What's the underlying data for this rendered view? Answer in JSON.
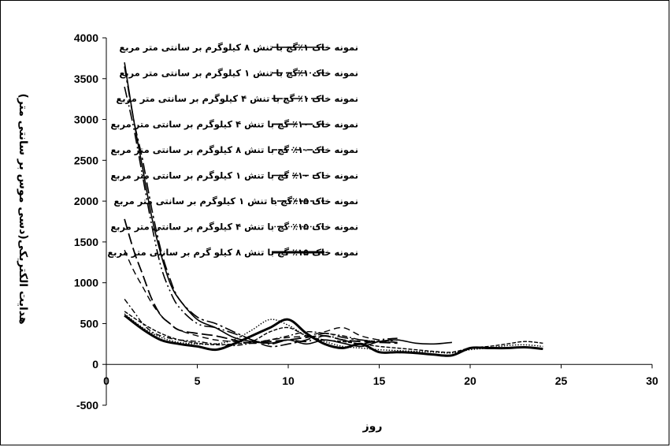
{
  "chart_data": {
    "type": "line",
    "xlabel": "روز",
    "ylabel": "هدایت الکتریکی(دسی موس بر سانتی متر)",
    "xlim": [
      0,
      30
    ],
    "ylim": [
      -500,
      4000
    ],
    "xticks": [
      0,
      5,
      10,
      15,
      20,
      25,
      30
    ],
    "yticks": [
      -500,
      0,
      500,
      1000,
      1500,
      2000,
      2500,
      3000,
      3500,
      4000
    ],
    "grid": false,
    "legend_position": "top-right",
    "series": [
      {
        "name": "نمونه خاک ۱٪گچ با تنش ۸ کیلوگرم بر سانتی متر مربع",
        "style": "solid",
        "x": [
          1,
          1.5,
          2,
          2.5,
          3,
          3.5,
          4,
          5,
          6,
          7,
          8,
          9,
          10,
          11,
          12,
          13,
          14,
          15,
          16,
          17,
          18,
          19
        ],
        "y": [
          3700,
          3000,
          2400,
          1800,
          1350,
          1000,
          800,
          550,
          450,
          330,
          280,
          260,
          300,
          250,
          300,
          260,
          220,
          280,
          300,
          260,
          250,
          270
        ]
      },
      {
        "name": "نمونه خاک ۱٪گچ با تنش ۱ کیلوگرم بر سانتی متر مربع",
        "style": "long-dash-dot-dot",
        "x": [
          1,
          1.5,
          2,
          2.5,
          3,
          3.5,
          4,
          5,
          6,
          7,
          8,
          9,
          10,
          11,
          12,
          13,
          14,
          15,
          16
        ],
        "y": [
          3400,
          2900,
          2300,
          1700,
          1200,
          900,
          700,
          500,
          450,
          380,
          300,
          250,
          300,
          280,
          350,
          300,
          250,
          300,
          320
        ]
      },
      {
        "name": "نمونه خاک ۱٪ گچ با تنش ۴ کیلوگرم بر سانتی متر مربع",
        "style": "long-dash-dot",
        "x": [
          1,
          1.5,
          2,
          2.5,
          3,
          3.5,
          4,
          5,
          6,
          7,
          8,
          9,
          10,
          11,
          12,
          13,
          14,
          15,
          16
        ],
        "y": [
          3650,
          3000,
          2500,
          1900,
          1400,
          1050,
          800,
          580,
          500,
          400,
          300,
          220,
          250,
          300,
          380,
          330,
          300,
          280,
          300
        ]
      },
      {
        "name": "نمونه خاک ۱۰٪ گچ با تنش ۴ کیلوگرم بر سانتی متر مربع",
        "style": "long-dash",
        "x": [
          1,
          1.5,
          2,
          2.5,
          3,
          3.5,
          4,
          5,
          6,
          7,
          8,
          9,
          10,
          11,
          12,
          13,
          14,
          15,
          16
        ],
        "y": [
          1780,
          1400,
          1100,
          800,
          600,
          500,
          420,
          380,
          350,
          300,
          260,
          280,
          300,
          330,
          350,
          300,
          280,
          270,
          260
        ]
      },
      {
        "name": "نمونه خاک ۱۰٪ گچ با تنش ۸ کیلوگرم بر سانتی متر مربع",
        "style": "dash-dot",
        "x": [
          1,
          1.5,
          2,
          2.5,
          3,
          3.5,
          4,
          5,
          6,
          7,
          8,
          9,
          10,
          11,
          12,
          13,
          14,
          15,
          16
        ],
        "y": [
          800,
          650,
          500,
          400,
          350,
          320,
          300,
          280,
          250,
          230,
          260,
          300,
          350,
          400,
          380,
          350,
          300,
          280,
          270
        ]
      },
      {
        "name": "نمونه خاک ۱۰٪ گچ با تنش ۱ کیلوگرم بر سانتی متر مربع",
        "style": "dash",
        "x": [
          1,
          1.5,
          2,
          2.5,
          3,
          3.5,
          4,
          5,
          6,
          7,
          8,
          9,
          10,
          11,
          12,
          13,
          14,
          15,
          16
        ],
        "y": [
          1400,
          1150,
          950,
          750,
          600,
          500,
          420,
          350,
          300,
          280,
          270,
          300,
          330,
          350,
          400,
          450,
          350,
          300,
          270
        ]
      },
      {
        "name": "نمونه خاک ۱۵٪گچ با تنش ۱ کیلوگرم بر سانتی متر مربع",
        "style": "short-dash",
        "x": [
          1,
          2,
          3,
          4,
          5,
          6,
          7,
          8,
          9,
          10,
          11,
          12,
          13,
          14,
          15,
          16,
          17,
          18,
          19,
          20,
          21,
          22,
          23,
          24
        ],
        "y": [
          650,
          500,
          380,
          300,
          260,
          240,
          250,
          280,
          400,
          450,
          350,
          300,
          280,
          250,
          220,
          200,
          180,
          160,
          150,
          200,
          220,
          250,
          280,
          260
        ]
      },
      {
        "name": "نمونه خاک ۱۵٪ گچ با تنش ۴ کیلوگرم بر سانتی متر مربع",
        "style": "dotted",
        "x": [
          1,
          2,
          3,
          4,
          5,
          6,
          7,
          8,
          9,
          10,
          11,
          12,
          13,
          14,
          15,
          16,
          17,
          18,
          19,
          20,
          21,
          22,
          23,
          24
        ],
        "y": [
          620,
          450,
          330,
          270,
          250,
          250,
          300,
          420,
          550,
          480,
          350,
          280,
          220,
          200,
          180,
          170,
          160,
          150,
          140,
          180,
          200,
          230,
          240,
          220
        ]
      },
      {
        "name": "نمونه خاک ۱۵٪ گچ با تنش ۸ کیلو گرم بر سانتی متر مربع",
        "style": "thick-solid",
        "x": [
          1,
          2,
          3,
          4,
          5,
          6,
          7,
          8,
          9,
          10,
          11,
          12,
          13,
          14,
          15,
          16,
          17,
          18,
          19,
          20,
          21,
          22,
          23,
          24
        ],
        "y": [
          600,
          430,
          300,
          250,
          220,
          180,
          250,
          350,
          450,
          550,
          380,
          250,
          200,
          250,
          150,
          150,
          140,
          120,
          110,
          200,
          200,
          200,
          210,
          190
        ]
      }
    ]
  }
}
